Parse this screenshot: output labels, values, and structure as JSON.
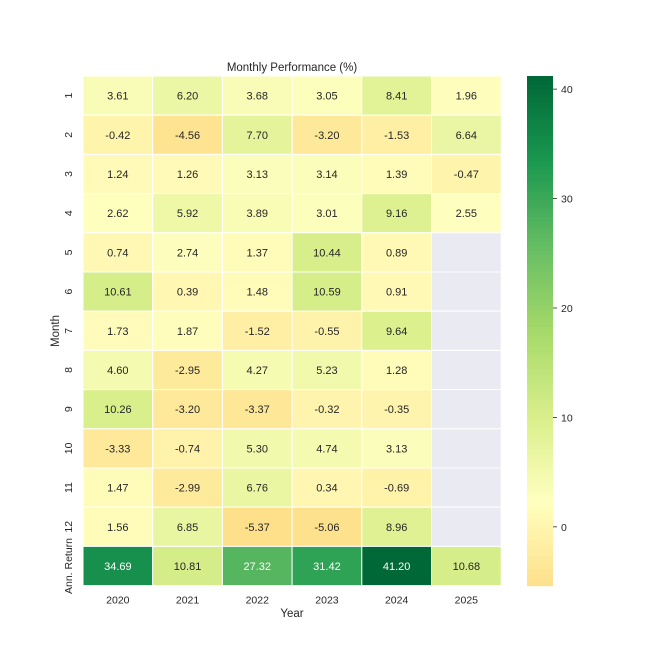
{
  "chart_data": {
    "type": "heatmap",
    "title": "Monthly Performance (%)",
    "xlabel": "Year",
    "ylabel": "Month",
    "x": [
      "2020",
      "2021",
      "2022",
      "2023",
      "2024",
      "2025"
    ],
    "y": [
      "1",
      "2",
      "3",
      "4",
      "5",
      "6",
      "7",
      "8",
      "9",
      "10",
      "11",
      "12",
      "Ann. Return"
    ],
    "values": [
      [
        3.61,
        6.2,
        3.68,
        3.05,
        8.41,
        1.96
      ],
      [
        -0.42,
        -4.56,
        7.7,
        -3.2,
        -1.53,
        6.64
      ],
      [
        1.24,
        1.26,
        3.13,
        3.14,
        1.39,
        -0.47
      ],
      [
        2.62,
        5.92,
        3.89,
        3.01,
        9.16,
        2.55
      ],
      [
        0.74,
        2.74,
        1.37,
        10.44,
        0.89,
        null
      ],
      [
        10.61,
        0.39,
        1.48,
        10.59,
        0.91,
        null
      ],
      [
        1.73,
        1.87,
        -1.52,
        -0.55,
        9.64,
        null
      ],
      [
        4.6,
        -2.95,
        4.27,
        5.23,
        1.28,
        null
      ],
      [
        10.26,
        -3.2,
        -3.37,
        -0.32,
        -0.35,
        null
      ],
      [
        -3.33,
        -0.74,
        5.3,
        4.74,
        3.13,
        null
      ],
      [
        1.47,
        -2.99,
        6.76,
        0.34,
        -0.69,
        null
      ],
      [
        1.56,
        6.85,
        -5.37,
        -5.06,
        8.96,
        null
      ],
      [
        34.69,
        10.81,
        27.32,
        31.42,
        41.2,
        10.68
      ]
    ],
    "colormap": "RdYlGn",
    "colorbar": {
      "ticks": [
        0,
        10,
        20,
        30,
        40
      ],
      "range": [
        -5.37,
        41.2
      ]
    },
    "missing_color": "#eaeaf2",
    "grid": false
  }
}
